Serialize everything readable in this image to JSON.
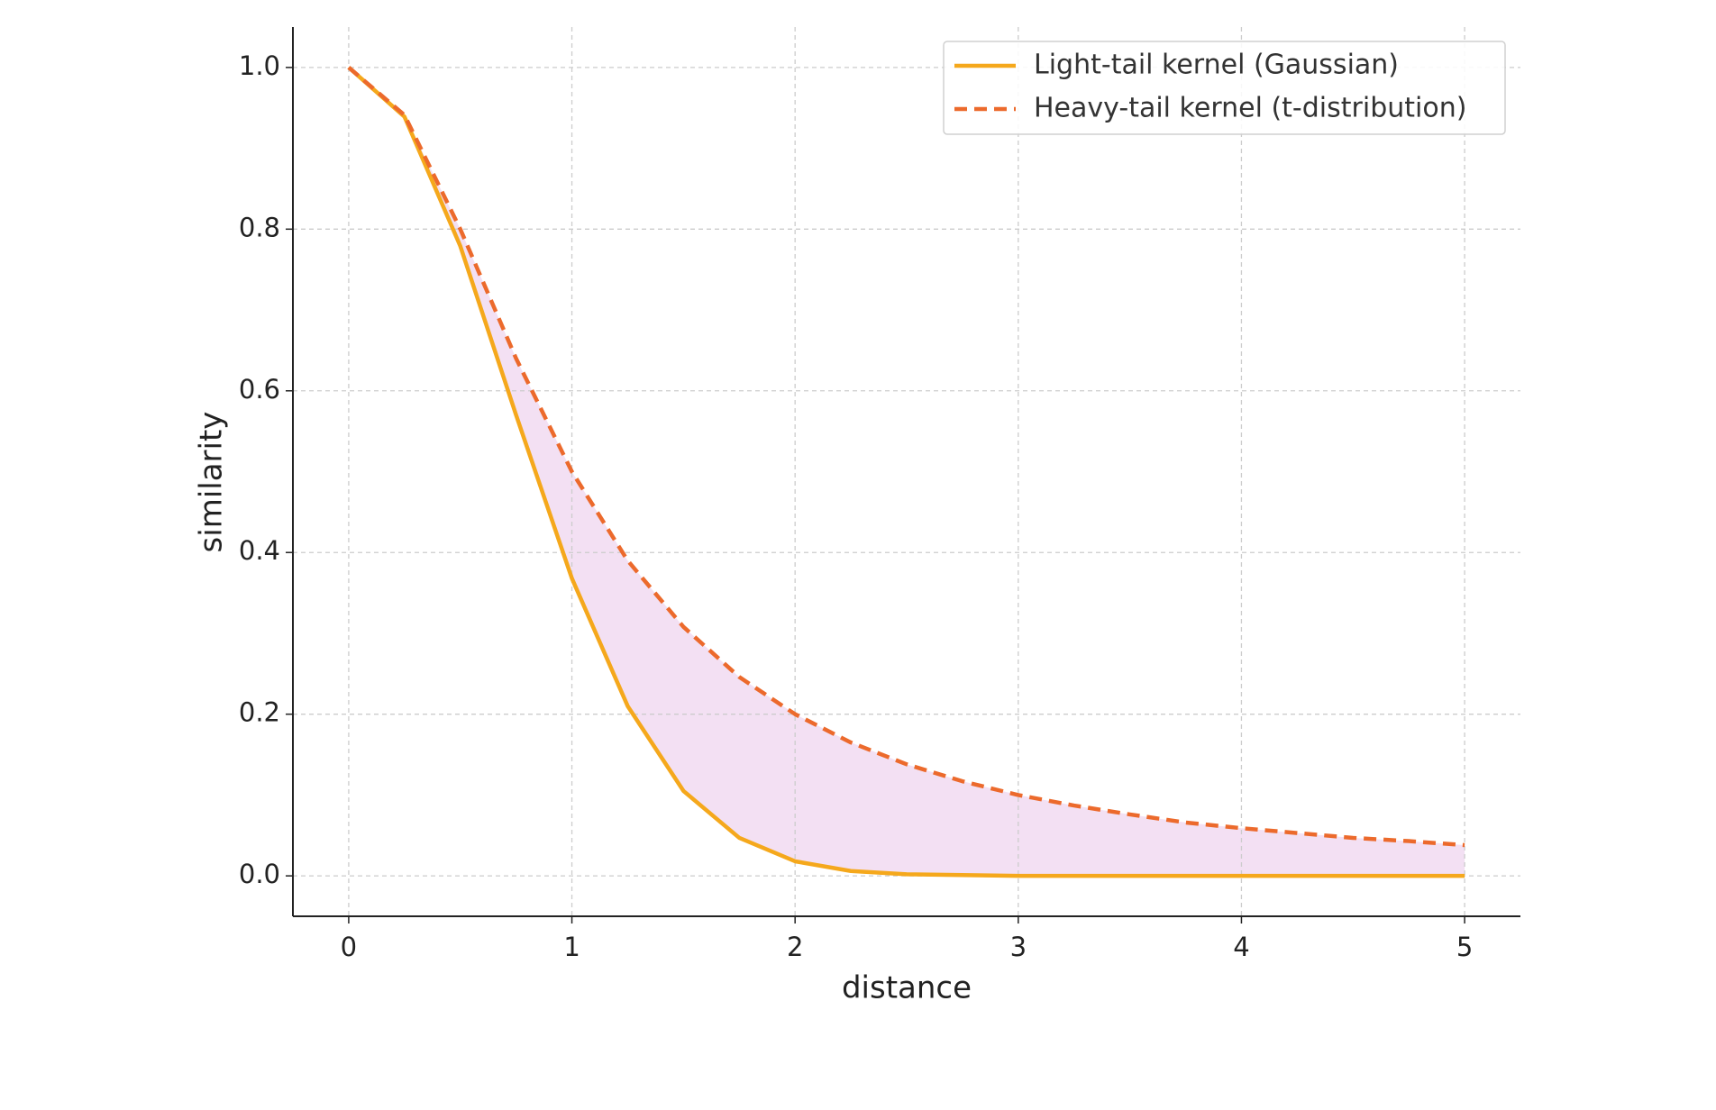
{
  "chart_data": {
    "type": "line",
    "x_label": "distance",
    "y_label": "similarity",
    "x": [
      0,
      0.25,
      0.5,
      0.75,
      1,
      1.25,
      1.5,
      1.75,
      2,
      2.25,
      2.5,
      2.75,
      3,
      3.25,
      3.5,
      3.75,
      4,
      4.25,
      4.5,
      4.75,
      5
    ],
    "series": [
      {
        "name": "Light-tail kernel (Gaussian)",
        "color": "#f5a81c",
        "dash": false,
        "values": [
          1,
          0.939,
          0.779,
          0.57,
          0.368,
          0.21,
          0.105,
          0.047,
          0.018,
          0.006,
          0.002,
          0.001,
          0,
          0,
          0,
          0,
          0,
          0,
          0,
          0,
          0
        ]
      },
      {
        "name": "Heavy-tail kernel (t-distribution)",
        "color": "#ec6a2c",
        "dash": true,
        "values": [
          1,
          0.941,
          0.8,
          0.64,
          0.5,
          0.39,
          0.308,
          0.246,
          0.2,
          0.165,
          0.138,
          0.117,
          0.1,
          0.087,
          0.076,
          0.066,
          0.059,
          0.053,
          0.047,
          0.043,
          0.038
        ]
      }
    ],
    "fill_between": true,
    "fill_color": "#f3e0f3",
    "xlim": [
      -0.25,
      5.25
    ],
    "ylim": [
      -0.05,
      1.05
    ],
    "xticks": [
      0,
      1,
      2,
      3,
      4,
      5
    ],
    "yticks": [
      {
        "value": 0,
        "label": "0.0"
      },
      0.2,
      0.4,
      0.6,
      0.8,
      {
        "value": 1,
        "label": "1.0"
      }
    ],
    "grid": true,
    "legend": "upper right"
  }
}
